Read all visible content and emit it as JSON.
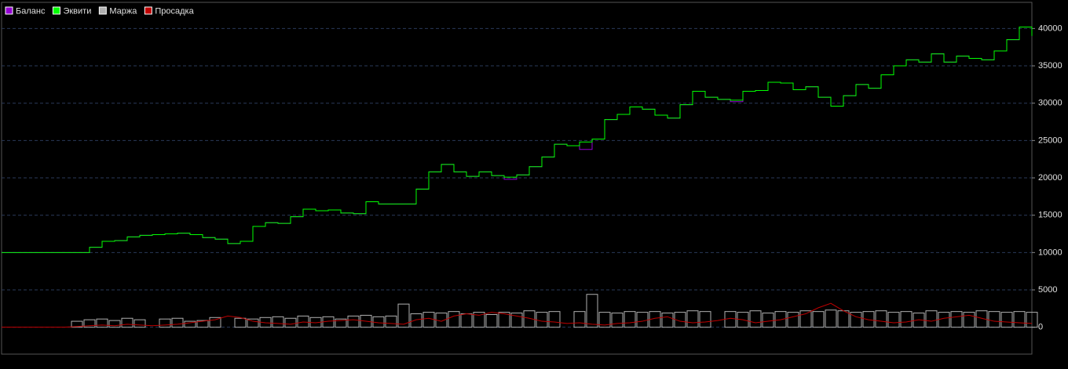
{
  "chart_data": {
    "type": "line",
    "ylim": [
      -3600,
      43500
    ],
    "yticks": [
      0,
      5000,
      10000,
      15000,
      20000,
      25000,
      30000,
      35000,
      40000
    ],
    "grid": true,
    "legend": "top-left",
    "series": [
      {
        "name": "Баланс",
        "color": "#9400d3",
        "type": "line",
        "values": [
          10000,
          10000,
          10000,
          10000,
          10000,
          10000,
          10000,
          10700,
          11500,
          11600,
          12100,
          12300,
          12400,
          12500,
          12600,
          12400,
          12000,
          11800,
          11200,
          11500,
          13500,
          14000,
          13900,
          14800,
          15800,
          15600,
          15700,
          15300,
          15200,
          16800,
          16500,
          16500,
          16500,
          18500,
          20800,
          21800,
          20800,
          20200,
          20800,
          20300,
          19800,
          20400,
          21500,
          22800,
          24500,
          24300,
          23800,
          25200,
          27800,
          28500,
          29500,
          29200,
          28400,
          28000,
          29800,
          31600,
          30800,
          30500,
          30200,
          31600,
          31700,
          32800,
          32700,
          31800,
          32200,
          30800,
          29600,
          31000,
          32500,
          32000,
          33800,
          35000,
          35800,
          35500,
          36600,
          35500,
          36300,
          36000,
          35800,
          37000,
          38500,
          40200,
          39000
        ]
      },
      {
        "name": "Эквити",
        "color": "#00ff00",
        "type": "line",
        "values": [
          10000,
          10000,
          10000,
          10000,
          10000,
          10000,
          10000,
          10700,
          11500,
          11600,
          12100,
          12300,
          12400,
          12500,
          12600,
          12400,
          12000,
          11800,
          11200,
          11500,
          13500,
          14000,
          13900,
          14800,
          15800,
          15600,
          15700,
          15300,
          15200,
          16800,
          16500,
          16500,
          16500,
          18500,
          20800,
          21800,
          20800,
          20200,
          20800,
          20300,
          20100,
          20400,
          21500,
          22800,
          24500,
          24300,
          24800,
          25200,
          27800,
          28500,
          29500,
          29200,
          28400,
          28000,
          29800,
          31600,
          30800,
          30500,
          30400,
          31600,
          31700,
          32800,
          32700,
          31800,
          32200,
          30800,
          29600,
          31000,
          32500,
          32000,
          33800,
          35000,
          35800,
          35500,
          36600,
          35500,
          36300,
          36000,
          35800,
          37000,
          38500,
          40200,
          39000
        ]
      },
      {
        "name": "Маржа",
        "color": "#b0b0b0",
        "type": "bar",
        "values": [
          0,
          0,
          0,
          0,
          0,
          0,
          800,
          1000,
          1100,
          900,
          1200,
          1000,
          0,
          1100,
          1200,
          800,
          900,
          1300,
          0,
          1200,
          1100,
          1300,
          1400,
          1200,
          1500,
          1300,
          1400,
          1100,
          1500,
          1600,
          1400,
          1500,
          3100,
          1800,
          2000,
          1900,
          2100,
          1800,
          2000,
          1700,
          2000,
          1900,
          2200,
          2000,
          2100,
          0,
          2100,
          4400,
          2000,
          1900,
          2100,
          2000,
          2100,
          1900,
          2000,
          2200,
          2100,
          0,
          2100,
          2000,
          2200,
          1900,
          2100,
          2000,
          2200,
          2100,
          2300,
          2200,
          2000,
          2100,
          2200,
          2000,
          2100,
          1900,
          2200,
          2000,
          2100,
          2000,
          2200,
          2100,
          2000,
          2100,
          2000
        ]
      },
      {
        "name": "Просадка",
        "color": "#c00000",
        "type": "line",
        "values": [
          0,
          0,
          0,
          0,
          0,
          0,
          100,
          200,
          300,
          200,
          400,
          300,
          200,
          300,
          400,
          600,
          800,
          1000,
          1500,
          1300,
          800,
          600,
          500,
          400,
          700,
          600,
          800,
          900,
          1000,
          800,
          600,
          500,
          400,
          1000,
          1200,
          800,
          1500,
          1800,
          1600,
          2000,
          1800,
          1500,
          1200,
          800,
          700,
          500,
          600,
          400,
          300,
          500,
          600,
          800,
          1200,
          1400,
          800,
          600,
          700,
          900,
          1200,
          1000,
          600,
          800,
          1000,
          1400,
          1800,
          2600,
          3200,
          2200,
          1400,
          1000,
          800,
          600,
          700,
          1000,
          800,
          1200,
          1400,
          1600,
          1200,
          800,
          700,
          600,
          500
        ]
      }
    ]
  }
}
